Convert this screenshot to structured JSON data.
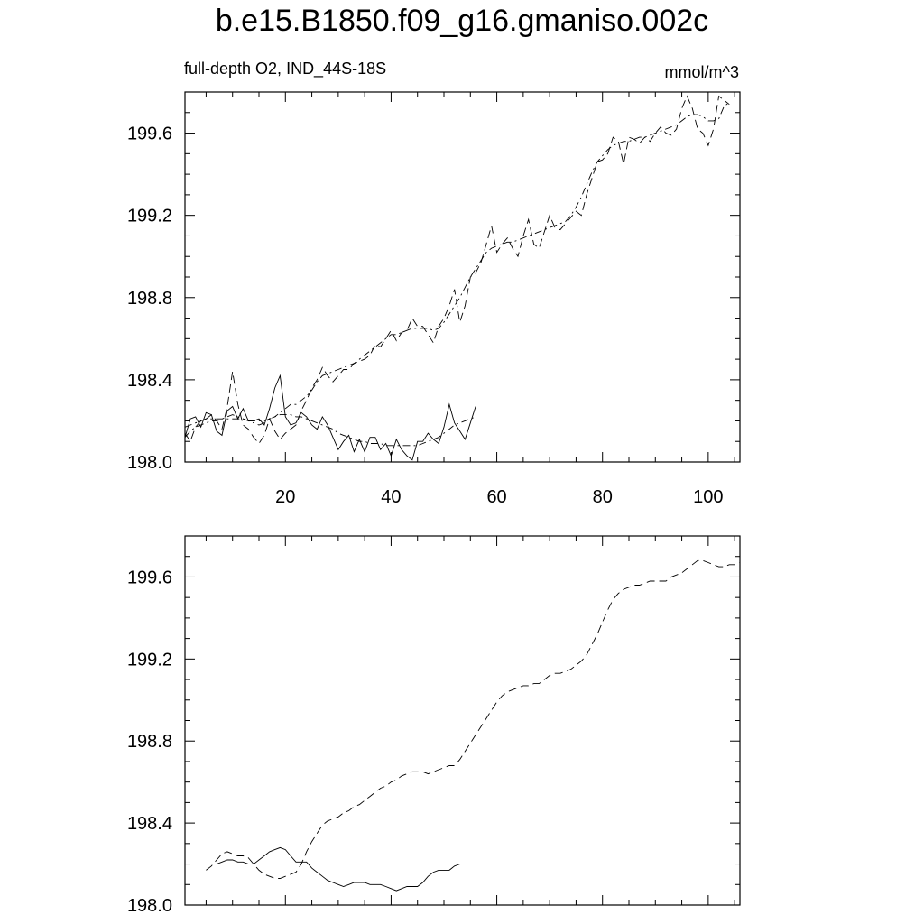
{
  "title": "b.e15.B1850.f09_g16.gmaniso.002c",
  "chart_data": [
    {
      "type": "line",
      "left_label": "full-depth O2, IND_44S-18S",
      "right_label": "mmol/m^3",
      "xlim": [
        1,
        106
      ],
      "ylim": [
        198.0,
        199.8
      ],
      "x_ticks": [
        20,
        40,
        60,
        80,
        100
      ],
      "y_ticks": [
        198.0,
        198.4,
        198.8,
        199.2,
        199.6
      ],
      "y_tick_labels": [
        "198.0",
        "198.4",
        "198.8",
        "199.2",
        "199.6"
      ],
      "x_tick_labels": [
        "20",
        "40",
        "60",
        "80",
        "100"
      ],
      "series": [
        {
          "style": "solid",
          "x_start": 1,
          "x_step": 1,
          "values": [
            198.12,
            198.21,
            198.22,
            198.17,
            198.24,
            198.23,
            198.15,
            198.13,
            198.25,
            198.27,
            198.21,
            198.26,
            198.2,
            198.2,
            198.21,
            198.18,
            198.26,
            198.36,
            198.42,
            198.22,
            198.18,
            198.19,
            198.24,
            198.22,
            198.18,
            198.16,
            198.22,
            198.18,
            198.12,
            198.06,
            198.1,
            198.13,
            198.05,
            198.11,
            198.05,
            198.12,
            198.12,
            198.06,
            198.09,
            198.03,
            198.11,
            198.06,
            198.03,
            198.01,
            198.1,
            198.1,
            198.14,
            198.11,
            198.09,
            198.17,
            198.28,
            198.19,
            198.15,
            198.11,
            198.19,
            198.27
          ]
        },
        {
          "style": "dashed",
          "x_start": 1,
          "x_step": 1,
          "values": [
            198.14,
            198.1,
            198.17,
            198.2,
            198.21,
            198.23,
            198.2,
            198.16,
            198.27,
            198.44,
            198.28,
            198.18,
            198.16,
            198.12,
            198.09,
            198.13,
            198.21,
            198.15,
            198.11,
            198.14,
            198.16,
            198.18,
            198.25,
            198.3,
            198.36,
            198.4,
            198.46,
            198.42,
            198.39,
            198.42,
            198.45,
            198.45,
            198.48,
            198.49,
            198.5,
            198.52,
            198.57,
            198.56,
            198.6,
            198.64,
            198.59,
            198.63,
            198.64,
            198.7,
            198.66,
            198.66,
            198.62,
            198.58,
            198.66,
            198.7,
            198.76,
            198.84,
            198.68,
            198.76,
            198.9,
            198.92,
            198.97,
            199.06,
            199.15,
            199.02,
            199.06,
            199.09,
            199.04,
            199.0,
            199.1,
            199.18,
            199.06,
            199.04,
            199.12,
            199.2,
            199.14,
            199.13,
            199.16,
            199.19,
            199.22,
            199.2,
            199.3,
            199.38,
            199.46,
            199.47,
            199.5,
            199.58,
            199.56,
            199.45,
            199.58,
            199.57,
            199.55,
            199.58,
            199.56,
            199.6,
            199.63,
            199.6,
            199.59,
            199.62,
            199.72,
            199.78,
            199.72,
            199.62,
            199.6,
            199.54,
            199.62,
            199.78,
            199.76,
            199.74
          ]
        },
        {
          "style": "dashdot",
          "x_start": 1,
          "x_step": 1,
          "values": [
            198.12,
            198.15,
            198.17,
            198.18,
            198.19,
            198.2,
            198.2,
            198.21,
            198.22,
            198.23,
            198.22,
            198.21,
            198.2,
            198.19,
            198.18,
            198.19,
            198.21,
            198.22,
            198.24,
            198.26,
            198.28,
            198.28,
            198.3,
            198.32,
            198.35,
            198.39,
            198.42,
            198.43,
            198.44,
            198.45,
            198.46,
            198.47,
            198.48,
            198.5,
            198.52,
            198.54,
            198.56,
            198.58,
            198.6,
            198.62,
            198.62,
            198.63,
            198.64,
            198.65,
            198.65,
            198.65,
            198.65,
            198.64,
            198.65,
            198.68,
            198.72,
            198.76,
            198.8,
            198.85,
            198.9,
            198.94,
            198.98,
            199.02,
            199.04,
            199.05,
            199.06,
            199.07,
            199.07,
            199.08,
            199.09,
            199.1,
            199.11,
            199.12,
            199.13,
            199.14,
            199.15,
            199.16,
            199.17,
            199.2,
            199.24,
            199.29,
            199.35,
            199.41,
            199.46,
            199.49,
            199.52,
            199.54,
            199.55,
            199.56,
            199.56,
            199.57,
            199.58,
            199.58,
            199.59,
            199.6,
            199.61,
            199.62,
            199.63,
            199.64,
            199.66,
            199.68,
            199.69,
            199.69,
            199.68,
            199.66,
            199.66,
            199.67,
            199.73,
            199.75
          ]
        },
        {
          "style": "dashdot",
          "x_start": 1,
          "x_step": 1,
          "values": [
            198.17,
            198.18,
            198.19,
            198.2,
            198.21,
            198.21,
            198.21,
            198.21,
            198.21,
            198.21,
            198.21,
            198.21,
            198.2,
            198.2,
            198.2,
            198.2,
            198.21,
            198.22,
            198.23,
            198.23,
            198.23,
            198.22,
            198.22,
            198.21,
            198.2,
            198.19,
            198.18,
            198.17,
            198.16,
            198.14,
            198.13,
            198.12,
            198.11,
            198.1,
            198.1,
            198.09,
            198.09,
            198.09,
            198.08,
            198.08,
            198.08,
            198.08,
            198.08,
            198.08,
            198.08,
            198.09,
            198.1,
            198.11,
            198.12,
            198.14,
            198.16,
            198.18,
            198.19,
            198.2,
            198.21,
            198.22
          ]
        }
      ]
    },
    {
      "type": "line",
      "xlim": [
        1,
        106
      ],
      "ylim": [
        198.0,
        199.8
      ],
      "x_ticks": [
        20,
        40,
        60,
        80,
        100
      ],
      "y_ticks": [
        198.0,
        198.4,
        198.8,
        199.2,
        199.6
      ],
      "y_tick_labels": [
        "198.0",
        "198.4",
        "198.8",
        "199.2",
        "199.6"
      ],
      "series": [
        {
          "style": "solid",
          "x_start": 5,
          "x_step": 1,
          "values": [
            198.2,
            198.2,
            198.2,
            198.21,
            198.22,
            198.22,
            198.21,
            198.21,
            198.2,
            198.2,
            198.22,
            198.24,
            198.26,
            198.27,
            198.28,
            198.27,
            198.24,
            198.21,
            198.21,
            198.21,
            198.18,
            198.16,
            198.14,
            198.12,
            198.11,
            198.1,
            198.09,
            198.1,
            198.11,
            198.11,
            198.11,
            198.1,
            198.1,
            198.1,
            198.09,
            198.08,
            198.07,
            198.08,
            198.09,
            198.09,
            198.09,
            198.11,
            198.14,
            198.16,
            198.17,
            198.17,
            198.17,
            198.19,
            198.2
          ]
        },
        {
          "style": "dashed",
          "x_start": 5,
          "x_step": 1,
          "values": [
            198.17,
            198.19,
            198.22,
            198.25,
            198.26,
            198.25,
            198.24,
            198.24,
            198.23,
            198.2,
            198.17,
            198.15,
            198.14,
            198.13,
            198.13,
            198.14,
            198.15,
            198.16,
            198.2,
            198.26,
            198.31,
            198.35,
            198.39,
            198.41,
            198.42,
            198.43,
            198.45,
            198.46,
            198.48,
            198.49,
            198.51,
            198.53,
            198.55,
            198.57,
            198.58,
            198.6,
            198.61,
            198.63,
            198.64,
            198.65,
            198.65,
            198.65,
            198.64,
            198.65,
            198.66,
            198.67,
            198.68,
            198.68,
            198.71,
            198.75,
            198.79,
            198.83,
            198.87,
            198.91,
            198.95,
            198.99,
            199.02,
            199.04,
            199.05,
            199.06,
            199.07,
            199.07,
            199.08,
            199.08,
            199.1,
            199.12,
            199.13,
            199.13,
            199.14,
            199.15,
            199.17,
            199.19,
            199.22,
            199.27,
            199.32,
            199.38,
            199.44,
            199.49,
            199.52,
            199.54,
            199.55,
            199.56,
            199.56,
            199.57,
            199.58,
            199.58,
            199.58,
            199.58,
            199.6,
            199.61,
            199.62,
            199.64,
            199.66,
            199.68,
            199.68,
            199.67,
            199.66,
            199.65,
            199.65,
            199.66,
            199.66,
            199.67
          ]
        }
      ]
    }
  ]
}
